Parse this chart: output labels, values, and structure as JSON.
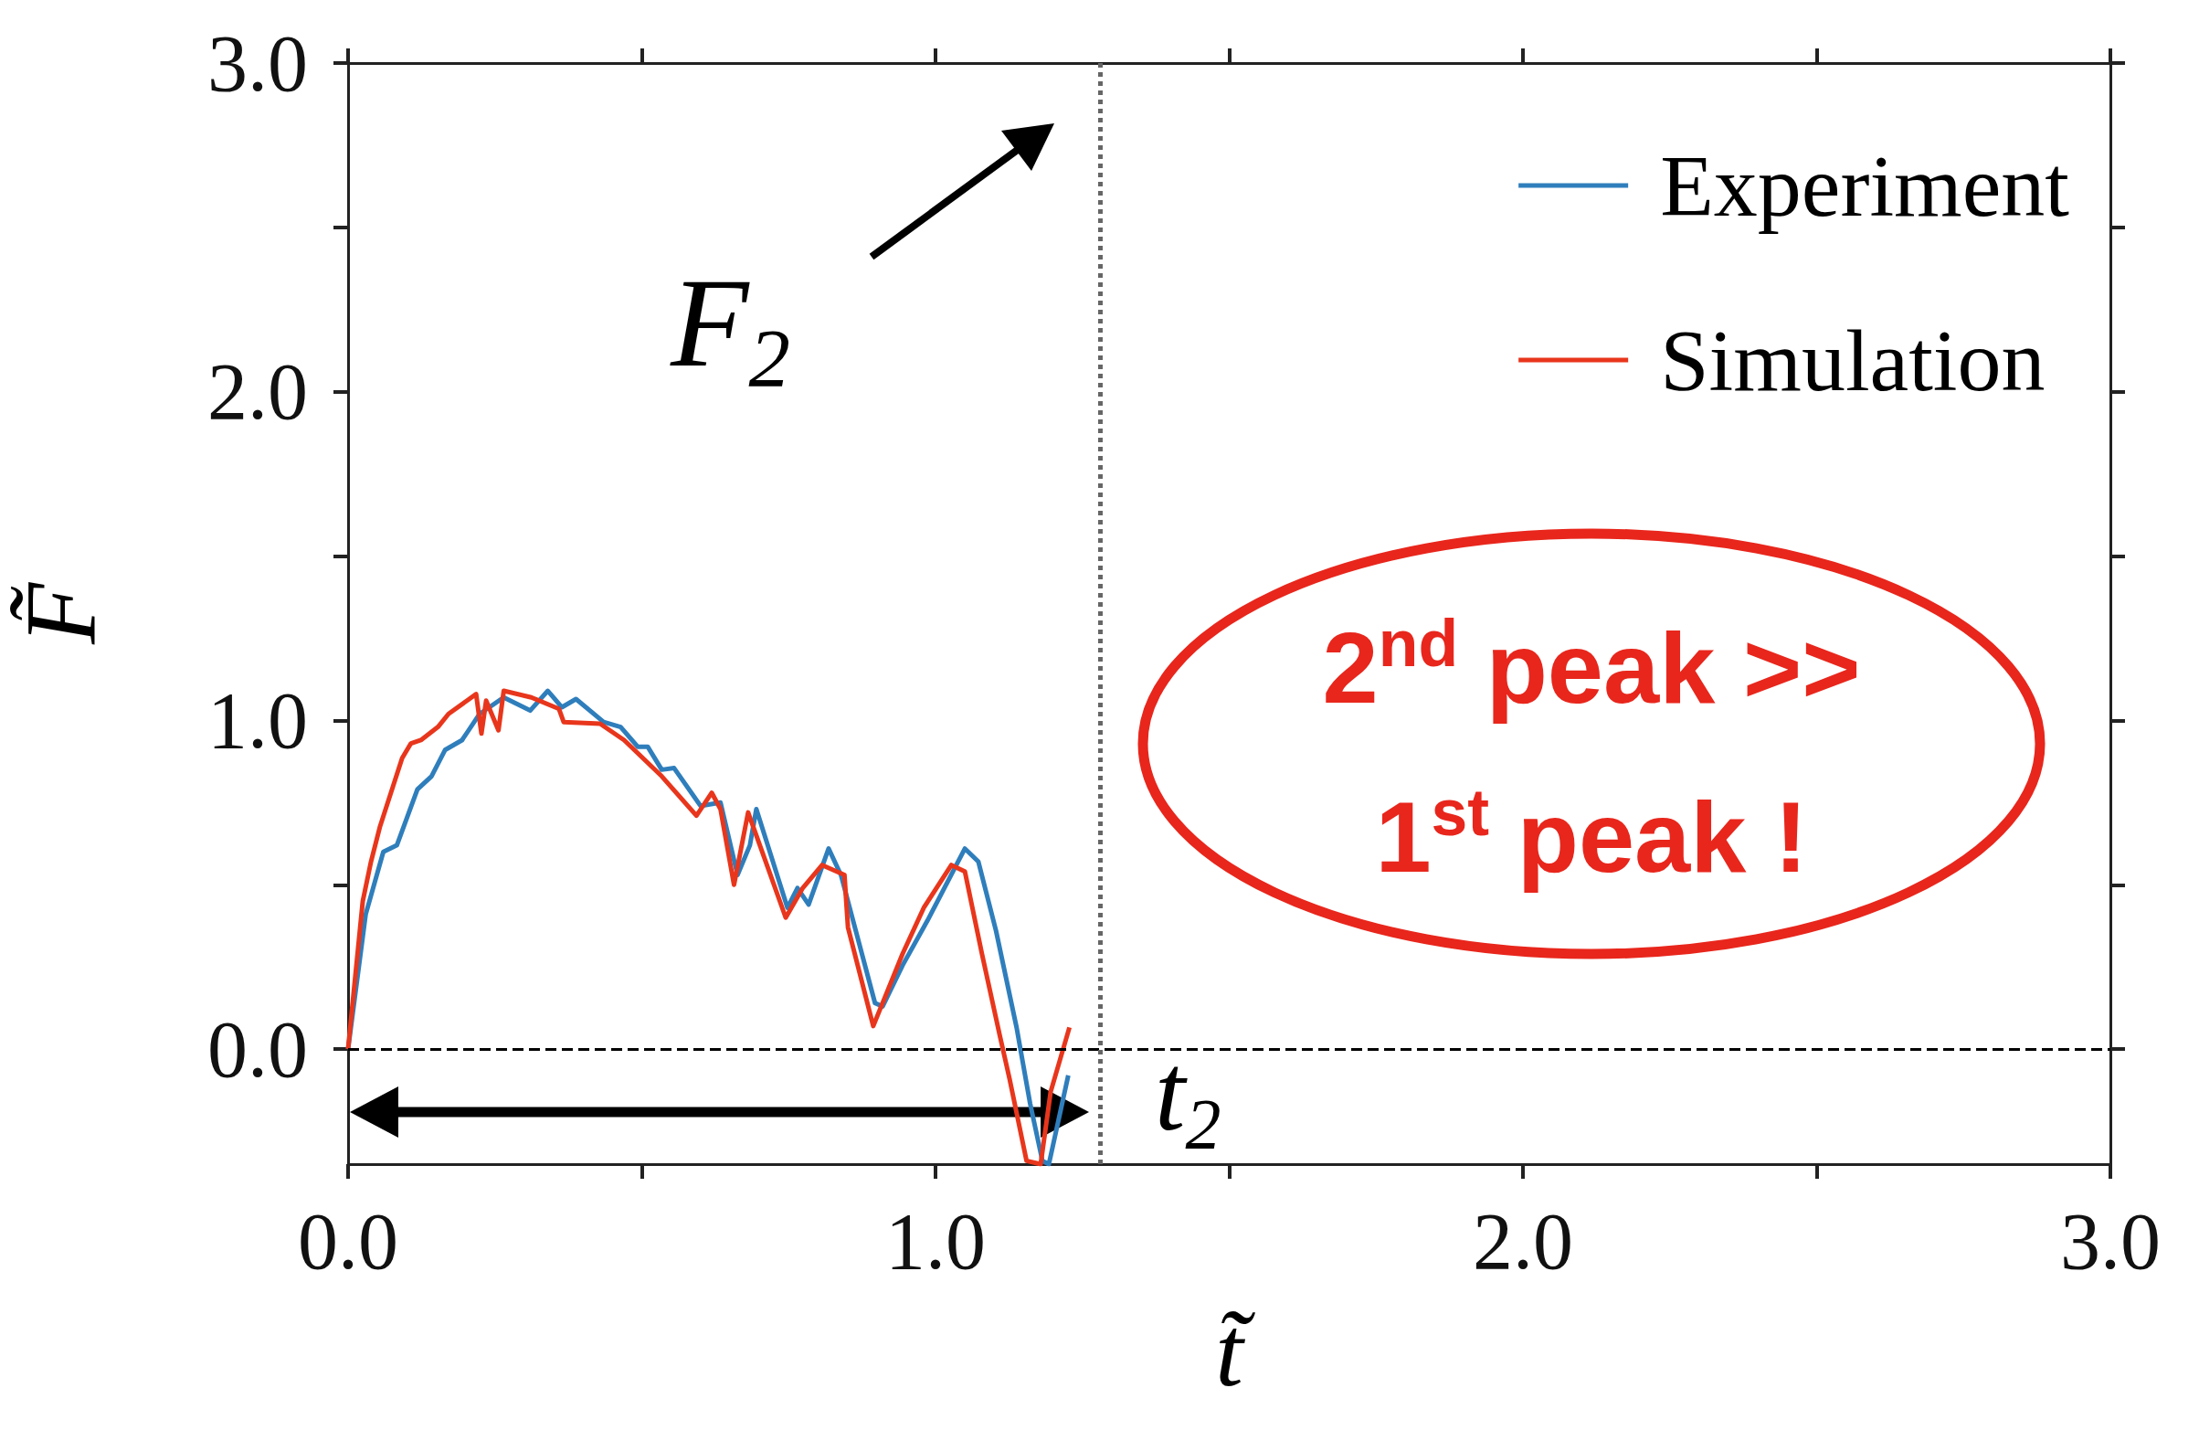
{
  "chart_data": {
    "type": "line",
    "xlabel": "t̃",
    "ylabel": "F̃",
    "xlim": [
      0,
      3
    ],
    "ylim": [
      -0.35,
      3
    ],
    "xticks": [
      {
        "value": 0,
        "label": "0.0"
      },
      {
        "value": 0.5,
        "label": null
      },
      {
        "value": 1,
        "label": "1.0"
      },
      {
        "value": 1.5,
        "label": null
      },
      {
        "value": 2,
        "label": "2.0"
      },
      {
        "value": 2.5,
        "label": null
      },
      {
        "value": 3,
        "label": "3.0"
      }
    ],
    "yticks": [
      {
        "value": 0,
        "label": "0.0"
      },
      {
        "value": 0.5,
        "label": null
      },
      {
        "value": 1,
        "label": "1.0"
      },
      {
        "value": 1.5,
        "label": null
      },
      {
        "value": 2,
        "label": "2.0"
      },
      {
        "value": 2.5,
        "label": null
      },
      {
        "value": 3,
        "label": "3.0"
      }
    ],
    "grid": false,
    "legend": "top right",
    "series": [
      {
        "name": "Experiment",
        "color": "#2f7ebc",
        "x": [
          0,
          0.03,
          0.06,
          0.083,
          0.118,
          0.142,
          0.165,
          0.194,
          0.224,
          0.265,
          0.31,
          0.34,
          0.364,
          0.388,
          0.435,
          0.464,
          0.493,
          0.51,
          0.534,
          0.555,
          0.6,
          0.634,
          0.663,
          0.684,
          0.695,
          0.748,
          0.765,
          0.784,
          0.818,
          0.839,
          0.897,
          0.91,
          0.944,
          0.986,
          1.05,
          1.073,
          1.103,
          1.138,
          1.161,
          1.182,
          1.193,
          1.226
        ],
        "values": [
          0,
          0.41,
          0.6,
          0.62,
          0.79,
          0.83,
          0.91,
          0.94,
          1.02,
          1.07,
          1.03,
          1.09,
          1.04,
          1.065,
          0.995,
          0.98,
          0.92,
          0.92,
          0.85,
          0.855,
          0.74,
          0.75,
          0.53,
          0.62,
          0.73,
          0.43,
          0.49,
          0.44,
          0.61,
          0.53,
          0.14,
          0.13,
          0.255,
          0.39,
          0.61,
          0.57,
          0.36,
          0.066,
          -0.165,
          -0.34,
          -0.35,
          -0.08
        ]
      },
      {
        "name": "Simulation",
        "color": "#e8361c",
        "x": [
          0,
          0.025,
          0.039,
          0.054,
          0.092,
          0.107,
          0.124,
          0.153,
          0.171,
          0.218,
          0.227,
          0.235,
          0.256,
          0.265,
          0.312,
          0.359,
          0.367,
          0.429,
          0.47,
          0.534,
          0.593,
          0.619,
          0.634,
          0.657,
          0.681,
          0.745,
          0.774,
          0.807,
          0.845,
          0.851,
          0.894,
          0.944,
          0.98,
          1.027,
          1.05,
          1.079,
          1.109,
          1.126,
          1.155,
          1.179,
          1.196,
          1.228
        ],
        "values": [
          0,
          0.45,
          0.57,
          0.675,
          0.885,
          0.93,
          0.94,
          0.98,
          1.02,
          1.08,
          0.96,
          1.06,
          0.97,
          1.09,
          1.07,
          1.035,
          0.995,
          0.99,
          0.94,
          0.83,
          0.71,
          0.78,
          0.73,
          0.5,
          0.72,
          0.4,
          0.49,
          0.56,
          0.53,
          0.37,
          0.07,
          0.29,
          0.43,
          0.56,
          0.54,
          0.29,
          0.045,
          -0.09,
          -0.34,
          -0.35,
          -0.13,
          0.066
        ]
      }
    ],
    "ref_lines": [
      {
        "axis": "y",
        "value": 0,
        "line_style": "dashed",
        "color": "#000000"
      },
      {
        "axis": "x",
        "value": 1.28,
        "label": "t$_{2}$",
        "line_style": "dotted",
        "color": "#666666"
      }
    ],
    "annotations": [
      "F$_{2}$",
      "2$^{nd}$ peak >>\n1$^{st}$ peak !"
    ]
  }
}
